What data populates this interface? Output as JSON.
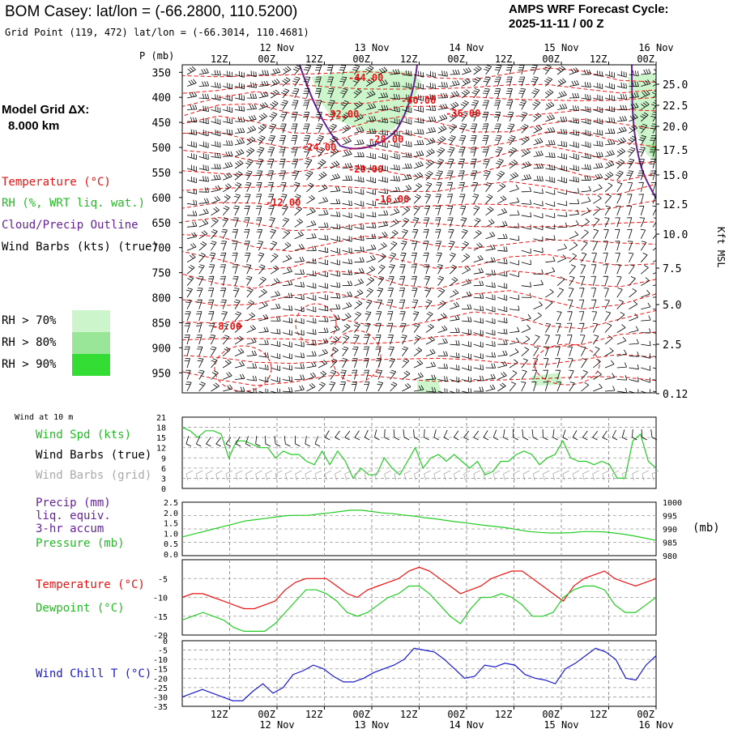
{
  "header": {
    "title": "BOM Casey:  lat/lon = (-66.2800, 110.5200)",
    "grid_point": "Grid Point (119, 472) lat/lon = (-66.3014, 110.4681)",
    "forecast_title": "AMPS WRF Forecast Cycle:",
    "forecast_cycle": "2025-11-11 / 00  Z"
  },
  "model_grid": {
    "label": "Model Grid ΔX:",
    "value": "8.000 km"
  },
  "legend": {
    "temperature": "Temperature (°C)",
    "rh": "RH (%, WRT liq. wat.)",
    "cloud": "Cloud/Precip Outline",
    "wind_barbs": "Wind Barbs (kts) (true)",
    "rh70": "RH > 70%",
    "rh80": "RH > 80%",
    "rh90": "RH > 90%"
  },
  "colors": {
    "rh70": "#ccf5cc",
    "rh80": "#99e699",
    "rh90": "#33dd33",
    "temp": "#ee1111",
    "cloud": "#662299",
    "green": "#22cc22",
    "blue": "#1a1acc",
    "grid": "#999999",
    "grey_barb": "#aaaaaa"
  },
  "chart_data": [
    {
      "type": "line",
      "id": "cross_section",
      "ylabel": "P (mb)",
      "ylabel_right": "Kft MSL",
      "ylim": [
        350,
        990
      ],
      "pressure_ticks": [
        "350",
        "400",
        "450",
        "500",
        "550",
        "600",
        "650",
        "700",
        "750",
        "800",
        "850",
        "900",
        "950"
      ],
      "height_ticks": [
        "25.0",
        "22.5",
        "20.0",
        "17.5",
        "15.0",
        "12.5",
        "10.0",
        "7.5",
        "5.0",
        "2.5",
        "0.12"
      ],
      "time_ticks_top": [
        "12Z",
        "00Z",
        "12Z",
        "00Z",
        "12Z",
        "00Z",
        "12Z",
        "00Z",
        "12Z",
        "00Z"
      ],
      "date_labels_top": [
        "12 Nov",
        "13 Nov",
        "14 Nov",
        "15 Nov",
        "16 Nov"
      ],
      "time_ticks_bottom": [
        "12Z",
        "00Z",
        "12Z",
        "00Z",
        "12Z",
        "00Z",
        "12Z",
        "00Z",
        "12Z",
        "00Z"
      ],
      "date_labels_bottom": [
        "12 Nov",
        "13 Nov",
        "14 Nov",
        "15 Nov",
        "16 Nov"
      ],
      "temperature_labels": [
        "-44.00",
        "-40.00",
        "-36.00",
        "-32.00",
        "-28.00",
        "-24.00",
        "-20.00",
        "-16.00",
        "-12.00",
        "-8.00"
      ]
    },
    {
      "type": "line",
      "id": "wind",
      "title": "Wind at 10 m",
      "series_labels": [
        "Wind Spd (kts)",
        "Wind Barbs (true)",
        "Wind Barbs (grid)"
      ],
      "yticks": [
        "21",
        "18",
        "15",
        "12",
        "9",
        "6",
        "3",
        "0"
      ],
      "ylim": [
        0,
        21
      ],
      "series": [
        {
          "name": "Wind Spd (kts)",
          "values": [
            18,
            17,
            15,
            17,
            17,
            16,
            9,
            14,
            14,
            13,
            12,
            12,
            9,
            11,
            10,
            10,
            8,
            7,
            11,
            7,
            11,
            8,
            3,
            6,
            4,
            4,
            9,
            6,
            4,
            8,
            12,
            6,
            9,
            10,
            8,
            10,
            8,
            6,
            8,
            4,
            5,
            8,
            8,
            10,
            11,
            10,
            7,
            9,
            10,
            14,
            9,
            8,
            8,
            7,
            8,
            7,
            3,
            3,
            14,
            16,
            8,
            6
          ]
        }
      ]
    },
    {
      "type": "line",
      "id": "pressure",
      "series_labels": [
        "Precip (mm)",
        "liq. equiv.",
        "3-hr accum",
        "Pressure (mb)"
      ],
      "yticks_left": [
        "2.5",
        "2.0",
        "1.5",
        "1.0",
        "0.5",
        "0.0"
      ],
      "yticks_right": [
        "1000",
        "995",
        "990",
        "985",
        "980"
      ],
      "unit_right": "(mb)",
      "ylim": [
        980,
        1000
      ],
      "series": [
        {
          "name": "Pressure (mb)",
          "values": [
            987,
            988,
            989,
            990,
            991,
            992,
            993,
            993.5,
            994,
            994.5,
            995,
            995.1,
            995.1,
            995.6,
            996,
            996.5,
            997,
            997,
            996.5,
            996,
            995.7,
            995.2,
            994.8,
            994.2,
            993.8,
            993.2,
            992.7,
            992.2,
            991.7,
            991.2,
            990.8,
            990.3,
            989.6,
            989,
            988.7,
            988.5,
            988.5,
            988.6,
            989,
            989,
            988.9,
            988.5,
            988,
            987.3,
            986.5,
            985.7
          ]
        }
      ]
    },
    {
      "type": "line",
      "id": "temp_dew",
      "series_labels": [
        "Temperature (°C)",
        "Dewpoint (°C)"
      ],
      "yticks": [
        "-5",
        "-10",
        "-15",
        "-20"
      ],
      "ylim": [
        -20,
        0
      ],
      "series": [
        {
          "name": "Temperature (°C)",
          "values": [
            -10,
            -9,
            -9,
            -10,
            -11,
            -12,
            -13,
            -13,
            -12,
            -11,
            -8,
            -6,
            -5,
            -5,
            -5,
            -7,
            -9,
            -10,
            -8,
            -7,
            -6,
            -5,
            -3,
            -2,
            -3,
            -5,
            -7,
            -9,
            -8,
            -7,
            -5,
            -4,
            -3,
            -3,
            -5,
            -7,
            -9,
            -11,
            -7,
            -5,
            -4,
            -3,
            -5,
            -6,
            -7,
            -6,
            -5
          ]
        },
        {
          "name": "Dewpoint (°C)",
          "values": [
            -16,
            -15,
            -14,
            -15,
            -16,
            -18,
            -19,
            -19,
            -19,
            -17,
            -14,
            -11,
            -8,
            -8,
            -9,
            -11,
            -14,
            -15,
            -14,
            -12,
            -10,
            -9,
            -7,
            -7,
            -9,
            -12,
            -15,
            -17,
            -13,
            -10,
            -10,
            -9,
            -10,
            -12,
            -15,
            -15,
            -14,
            -10,
            -8,
            -7,
            -7,
            -8,
            -12,
            -14,
            -14,
            -12,
            -10
          ]
        }
      ]
    },
    {
      "type": "line",
      "id": "wind_chill",
      "series_labels": [
        "Wind Chill T (°C)"
      ],
      "yticks": [
        "-5",
        "-10",
        "-15",
        "-20",
        "-25",
        "-30",
        "-35"
      ],
      "extra_ticks": [
        "0"
      ],
      "ylim": [
        -35,
        0
      ],
      "series": [
        {
          "name": "Wind Chill T (°C)",
          "values": [
            -30,
            -28,
            -26,
            -28,
            -30,
            -32,
            -32,
            -27,
            -23,
            -28,
            -25,
            -18,
            -16,
            -13,
            -15,
            -19,
            -22,
            -22,
            -20,
            -17,
            -15,
            -13,
            -10,
            -4,
            -5,
            -6,
            -10,
            -15,
            -20,
            -19,
            -13,
            -14,
            -12,
            -13,
            -18,
            -20,
            -21,
            -23,
            -15,
            -12,
            -8,
            -4,
            -6,
            -10,
            -20,
            -21,
            -13,
            -8
          ]
        }
      ]
    }
  ]
}
